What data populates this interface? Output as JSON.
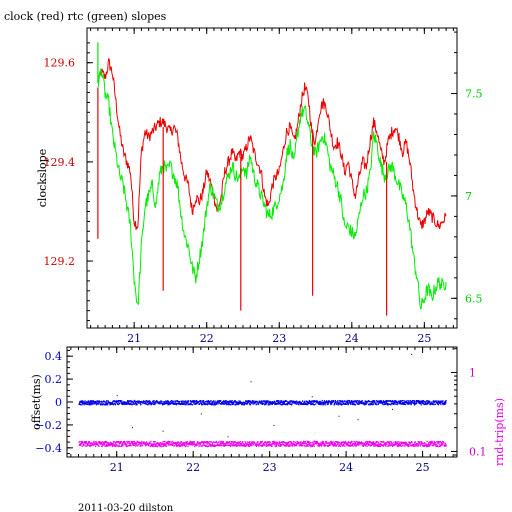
{
  "title": "clock (red) rtc (green) slopes",
  "footer": "2011-03-20 dilston",
  "colors": {
    "clock": "#ee0000",
    "rtc": "#00ee00",
    "offset": "#0000ee",
    "rndtrip": "#ee00ee",
    "axis": "#000000"
  },
  "chart_data": [
    {
      "type": "line",
      "title": "clock (red) rtc (green) slopes",
      "xlabel": "",
      "ylabel": "clockslope",
      "y2label": "",
      "x_ticks": [
        "21",
        "22",
        "23",
        "24",
        "25"
      ],
      "y_ticks": [
        "129.2",
        "129.4",
        "129.6"
      ],
      "y2_ticks": [
        "6.5",
        "7",
        "7.5"
      ],
      "xlim": [
        20.35,
        25.45
      ],
      "ylim": [
        129.065,
        129.67
      ],
      "y2lim": [
        6.355,
        7.82
      ],
      "series": [
        {
          "name": "clock",
          "axis": "left",
          "color": "#ee0000",
          "x": [
            20.5,
            20.55,
            20.6,
            20.65,
            20.7,
            20.75,
            20.8,
            20.85,
            20.9,
            20.95,
            21.0,
            21.05,
            21.1,
            21.15,
            21.2,
            21.25,
            21.3,
            21.35,
            21.4,
            21.45,
            21.5,
            21.55,
            21.6,
            21.65,
            21.7,
            21.75,
            21.8,
            21.85,
            21.9,
            21.95,
            22.0,
            22.05,
            22.1,
            22.15,
            22.2,
            22.25,
            22.3,
            22.35,
            22.4,
            22.45,
            22.5,
            22.55,
            22.6,
            22.65,
            22.7,
            22.75,
            22.8,
            22.85,
            22.9,
            22.95,
            23.0,
            23.05,
            23.1,
            23.15,
            23.2,
            23.25,
            23.3,
            23.35,
            23.4,
            23.45,
            23.5,
            23.55,
            23.6,
            23.65,
            23.7,
            23.75,
            23.8,
            23.85,
            23.9,
            23.95,
            24.0,
            24.05,
            24.1,
            24.15,
            24.2,
            24.25,
            24.3,
            24.35,
            24.4,
            24.45,
            24.5,
            24.55,
            24.6,
            24.65,
            24.7,
            24.75,
            24.8,
            24.85,
            24.9,
            24.95,
            25.0,
            25.05,
            25.1,
            25.15,
            25.2,
            25.25,
            25.3
          ],
          "y": [
            129.56,
            129.58,
            129.57,
            129.6,
            129.58,
            129.52,
            129.46,
            129.42,
            129.4,
            129.38,
            129.28,
            129.27,
            129.42,
            129.46,
            129.45,
            129.46,
            129.47,
            129.48,
            129.48,
            129.47,
            129.46,
            129.47,
            129.45,
            129.4,
            129.37,
            129.35,
            129.3,
            129.33,
            129.32,
            129.34,
            129.38,
            129.36,
            129.33,
            129.3,
            129.33,
            129.38,
            129.4,
            129.42,
            129.4,
            129.42,
            129.41,
            129.43,
            129.45,
            129.42,
            129.4,
            129.38,
            129.33,
            129.31,
            129.35,
            129.37,
            129.38,
            129.42,
            129.46,
            129.47,
            129.44,
            129.47,
            129.52,
            129.55,
            129.53,
            129.46,
            129.44,
            129.5,
            129.52,
            129.51,
            129.47,
            129.43,
            129.44,
            129.42,
            129.38,
            129.4,
            129.36,
            129.33,
            129.37,
            129.4,
            129.39,
            129.44,
            129.48,
            129.46,
            129.42,
            129.4,
            129.44,
            129.46,
            129.47,
            129.45,
            129.42,
            129.44,
            129.4,
            129.34,
            129.3,
            129.27,
            129.28,
            129.3,
            129.29,
            129.28,
            129.27,
            129.28,
            129.29
          ]
        },
        {
          "name": "rtc",
          "axis": "right",
          "color": "#00ee00",
          "x": [
            20.5,
            20.55,
            20.6,
            20.65,
            20.7,
            20.75,
            20.8,
            20.85,
            20.9,
            20.95,
            21.0,
            21.05,
            21.1,
            21.15,
            21.2,
            21.25,
            21.3,
            21.35,
            21.4,
            21.45,
            21.5,
            21.55,
            21.6,
            21.65,
            21.7,
            21.75,
            21.8,
            21.85,
            21.9,
            21.95,
            22.0,
            22.05,
            22.1,
            22.15,
            22.2,
            22.25,
            22.3,
            22.35,
            22.4,
            22.45,
            22.5,
            22.55,
            22.6,
            22.65,
            22.7,
            22.75,
            22.8,
            22.85,
            22.9,
            22.95,
            23.0,
            23.05,
            23.1,
            23.15,
            23.2,
            23.25,
            23.3,
            23.35,
            23.4,
            23.45,
            23.5,
            23.55,
            23.6,
            23.65,
            23.7,
            23.75,
            23.8,
            23.85,
            23.9,
            23.95,
            24.0,
            24.05,
            24.1,
            24.15,
            24.2,
            24.25,
            24.3,
            24.35,
            24.4,
            24.45,
            24.5,
            24.55,
            24.6,
            24.65,
            24.7,
            24.75,
            24.8,
            24.85,
            24.9,
            24.95,
            25.0,
            25.05,
            25.1,
            25.15,
            25.2,
            25.25,
            25.3
          ],
          "y": [
            7.55,
            7.62,
            7.5,
            7.45,
            7.3,
            7.2,
            7.1,
            7.05,
            6.95,
            6.85,
            6.6,
            6.45,
            6.75,
            6.95,
            7.0,
            7.05,
            6.95,
            7.1,
            7.15,
            7.12,
            7.15,
            7.1,
            7.05,
            6.9,
            6.8,
            6.75,
            6.65,
            6.6,
            6.7,
            6.8,
            6.95,
            7.05,
            7.0,
            6.95,
            6.97,
            7.05,
            7.1,
            7.15,
            7.1,
            7.08,
            7.15,
            7.1,
            7.2,
            7.1,
            7.05,
            7.0,
            6.95,
            6.9,
            6.92,
            6.95,
            7.0,
            7.05,
            7.2,
            7.25,
            7.15,
            7.3,
            7.4,
            7.42,
            7.35,
            7.25,
            7.2,
            7.25,
            7.3,
            7.25,
            7.15,
            7.1,
            7.05,
            6.98,
            6.85,
            6.85,
            6.82,
            6.8,
            6.9,
            7.0,
            7.02,
            7.1,
            7.3,
            7.25,
            7.15,
            7.1,
            7.12,
            7.15,
            7.1,
            7.05,
            7.0,
            6.95,
            6.85,
            6.7,
            6.6,
            6.45,
            6.5,
            6.55,
            6.5,
            6.55,
            6.58,
            6.56,
            6.58
          ]
        }
      ],
      "spikes": [
        {
          "axis": "left",
          "x": 20.5,
          "from": 129.55,
          "to": 129.245
        },
        {
          "axis": "left",
          "x": 21.4,
          "from": 129.47,
          "to": 129.14
        },
        {
          "axis": "left",
          "x": 22.47,
          "from": 129.41,
          "to": 129.1
        },
        {
          "axis": "left",
          "x": 23.46,
          "from": 129.46,
          "to": 129.13
        },
        {
          "axis": "left",
          "x": 24.48,
          "from": 129.4,
          "to": 129.09
        },
        {
          "axis": "right",
          "x": 20.5,
          "from": 7.55,
          "to": 7.75
        }
      ]
    },
    {
      "type": "scatter",
      "title": "",
      "xlabel": "",
      "ylabel": "offset(ms)",
      "y2label": "rnd-trip(ms)",
      "x_ticks": [
        "21",
        "22",
        "23",
        "24",
        "25"
      ],
      "y_ticks": [
        "0.4",
        "0.2",
        "0",
        "−0.2",
        "−0.4"
      ],
      "y2_ticks": [
        "1",
        "0.1"
      ],
      "y2_scale": "log",
      "xlim": [
        20.35,
        25.45
      ],
      "ylim": [
        -0.48,
        0.48
      ],
      "y2lim": [
        0.085,
        2.1
      ],
      "series": [
        {
          "name": "offset",
          "axis": "left",
          "color": "#0000ee",
          "x_range": [
            20.5,
            25.3
          ],
          "y_center": 0.0,
          "y_jitter": 0.018
        },
        {
          "name": "rnd-trip",
          "axis": "left",
          "color": "#ee00ee",
          "x_range": [
            20.5,
            25.3
          ],
          "y_center": -0.36,
          "y_jitter": 0.022
        }
      ],
      "outliers": [
        {
          "x": 21.2,
          "y": -0.22
        },
        {
          "x": 21.6,
          "y": -0.25
        },
        {
          "x": 22.1,
          "y": -0.1
        },
        {
          "x": 22.75,
          "y": 0.18
        },
        {
          "x": 23.05,
          "y": -0.2
        },
        {
          "x": 23.9,
          "y": -0.12
        },
        {
          "x": 24.15,
          "y": -0.15
        },
        {
          "x": 24.6,
          "y": -0.06
        },
        {
          "x": 24.85,
          "y": 0.42
        },
        {
          "x": 21.0,
          "y": 0.06
        },
        {
          "x": 23.55,
          "y": 0.05
        },
        {
          "x": 22.45,
          "y": -0.3
        }
      ]
    }
  ]
}
